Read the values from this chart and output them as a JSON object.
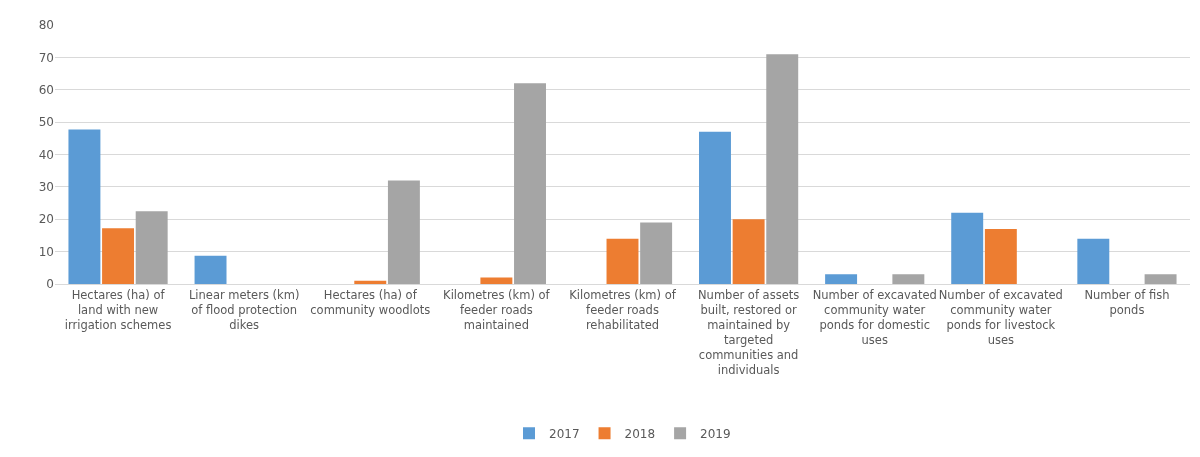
{
  "chart_data": {
    "type": "bar",
    "categories": [
      "Hectares (ha) of land with new irrigation schemes",
      "Linear meters (km) of flood protection dikes",
      "Hectares (ha) of community woodlots",
      "Kilometres (km) of feeder roads maintained",
      "Kilometres (km) of feeder roads rehabilitated",
      "Number of assets built, restored or maintained by targeted communities and individuals",
      "Number of excavated community water ponds for domestic uses",
      "Number of excavated community water ponds for livestock uses",
      "Number of fish ponds"
    ],
    "series": [
      {
        "name": "2017",
        "color": "#5b9bd5",
        "values": [
          47.7,
          8.7,
          null,
          null,
          null,
          47,
          3,
          22,
          14
        ]
      },
      {
        "name": "2018",
        "color": "#ed7d31",
        "values": [
          17.2,
          null,
          1,
          2,
          14,
          20,
          null,
          17,
          null
        ]
      },
      {
        "name": "2019",
        "color": "#a5a5a5",
        "values": [
          22.5,
          null,
          32,
          62,
          19,
          71,
          3,
          null,
          3
        ]
      }
    ],
    "ylim": [
      0,
      80
    ],
    "yticks": [
      0,
      10,
      20,
      30,
      40,
      50,
      60,
      70,
      80
    ],
    "grid": "y",
    "legend": "bottom"
  }
}
